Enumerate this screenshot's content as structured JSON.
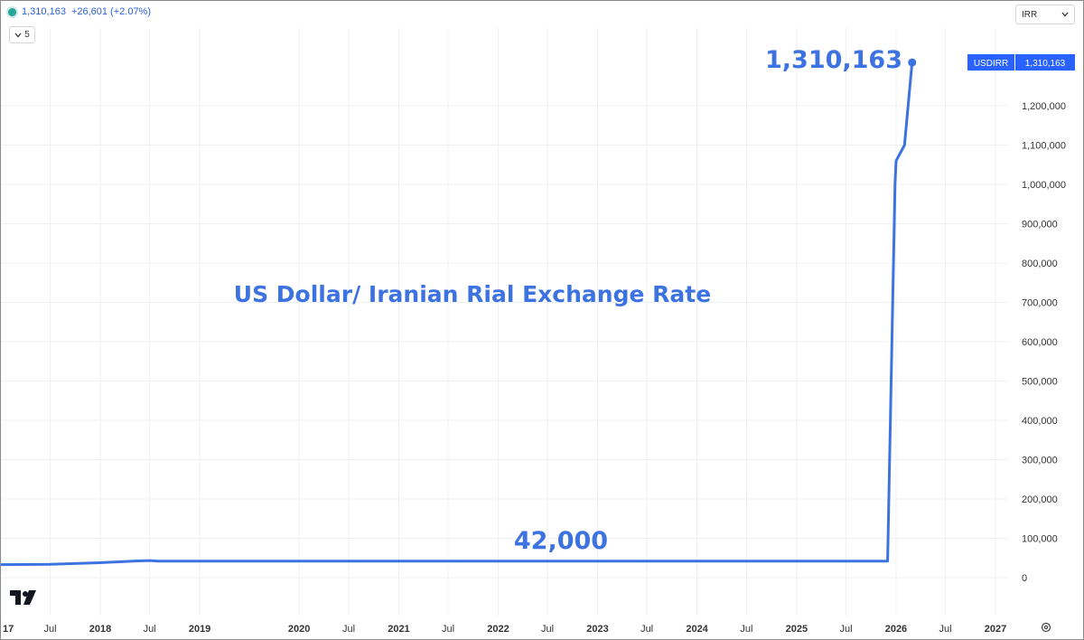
{
  "legend": {
    "last_value": "1,310,163",
    "change": "+26,601 (+2.07%)",
    "status_color": "#26a69a"
  },
  "collapse_button": {
    "label": "5",
    "icon": "chevron-down-icon"
  },
  "currency_select": {
    "value": "IRR",
    "icon": "chevron-down-icon"
  },
  "price_label": {
    "symbol": "USDIRR",
    "value": "1,310,163",
    "color": "#2962ff"
  },
  "colors": {
    "line": "#3d73e0",
    "annotation": "#3d73e0",
    "grid": "#eef0f3",
    "axis_text": "#333333"
  },
  "chart_data": {
    "type": "line",
    "title": "US Dollar/ Iranian Rial Exchange Rate",
    "annotations": [
      {
        "text": "1,310,163",
        "x": "2026-03",
        "y": 1310163
      },
      {
        "text": "42,000",
        "x": "2022-06",
        "y": 42000
      }
    ],
    "series": [
      {
        "x": [
          "2017-01",
          "2017-07",
          "2018-01",
          "2018-05",
          "2018-07",
          "2018-08",
          "2019-01",
          "2020-01",
          "2021-01",
          "2022-01",
          "2023-01",
          "2024-01",
          "2025-01",
          "2025-12",
          "2025-12-28",
          "2026-01",
          "2026-02",
          "2026-03"
        ],
        "values": [
          33000,
          34000,
          38000,
          42000,
          43500,
          42000,
          42000,
          42000,
          42000,
          42000,
          42000,
          42000,
          42000,
          42000,
          1000000,
          1060000,
          1100000,
          1310163
        ]
      }
    ],
    "x_tick_labels": [
      "17",
      "Jul",
      "2018",
      "Jul",
      "2019",
      "2020",
      "Jul",
      "2021",
      "Jul",
      "2022",
      "Jul",
      "2023",
      "Jul",
      "2024",
      "Jul",
      "2025",
      "Jul",
      "2026",
      "Jul",
      "2027"
    ],
    "x_ticks": [
      {
        "label": "17",
        "date": "2017-01"
      },
      {
        "label": "Jul",
        "date": "2017-07"
      },
      {
        "label": "2018",
        "date": "2018-01"
      },
      {
        "label": "Jul",
        "date": "2018-07"
      },
      {
        "label": "2019",
        "date": "2019-01"
      },
      {
        "label": "2020",
        "date": "2020-01"
      },
      {
        "label": "Jul",
        "date": "2020-07"
      },
      {
        "label": "2021",
        "date": "2021-01"
      },
      {
        "label": "Jul",
        "date": "2021-07"
      },
      {
        "label": "2022",
        "date": "2022-01"
      },
      {
        "label": "Jul",
        "date": "2022-07"
      },
      {
        "label": "2023",
        "date": "2023-01"
      },
      {
        "label": "Jul",
        "date": "2023-07"
      },
      {
        "label": "2024",
        "date": "2024-01"
      },
      {
        "label": "Jul",
        "date": "2024-07"
      },
      {
        "label": "2025",
        "date": "2025-01"
      },
      {
        "label": "Jul",
        "date": "2025-07"
      },
      {
        "label": "2026",
        "date": "2026-01"
      },
      {
        "label": "Jul",
        "date": "2026-07"
      },
      {
        "label": "2027",
        "date": "2027-01"
      }
    ],
    "y_ticks": [
      {
        "label": "0",
        "value": 0
      },
      {
        "label": "100,000",
        "value": 100000
      },
      {
        "label": "200,000",
        "value": 200000
      },
      {
        "label": "300,000",
        "value": 300000
      },
      {
        "label": "400,000",
        "value": 400000
      },
      {
        "label": "500,000",
        "value": 500000
      },
      {
        "label": "600,000",
        "value": 600000
      },
      {
        "label": "700,000",
        "value": 700000
      },
      {
        "label": "800,000",
        "value": 800000
      },
      {
        "label": "900,000",
        "value": 900000
      },
      {
        "label": "1,000,000",
        "value": 1000000
      },
      {
        "label": "1,100,000",
        "value": 1100000
      },
      {
        "label": "1,200,000",
        "value": 1200000
      }
    ],
    "xlabel": "",
    "ylabel": "",
    "ylim": [
      0,
      1400000
    ],
    "grid": true,
    "axis_position": "right"
  }
}
